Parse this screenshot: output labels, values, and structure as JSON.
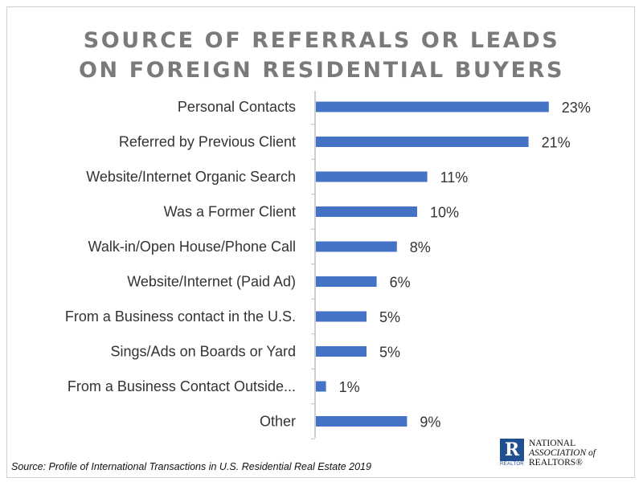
{
  "title_lines": [
    "SOURCE OF REFERRALS OR LEADS",
    "ON FOREIGN RESIDENTIAL BUYERS"
  ],
  "source": "Source: Profile of International Transactions in U.S. Residential Real Estate 2019",
  "logo": {
    "mark_letter": "R",
    "mark_caption": "REALTOR",
    "lines": [
      "NATIONAL",
      "ASSOCIATION of",
      "REALTORS®"
    ]
  },
  "colors": {
    "bar": "#4472c4",
    "axis": "#bfbfbf",
    "title": "#7a7a7a",
    "text": "#333333"
  },
  "chart_data": {
    "type": "bar",
    "orientation": "horizontal",
    "categories": [
      "Personal Contacts",
      "Referred by Previous Client",
      "Website/Internet Organic Search",
      "Was a Former Client",
      "Walk-in/Open House/Phone Call",
      "Website/Internet (Paid Ad)",
      "From a Business contact in the U.S.",
      "Sings/Ads on Boards or Yard",
      "From a Business Contact Outside...",
      "Other"
    ],
    "values": [
      23,
      21,
      11,
      10,
      8,
      6,
      5,
      5,
      1,
      9
    ],
    "value_labels": [
      "23%",
      "21%",
      "11%",
      "10%",
      "8%",
      "6%",
      "5%",
      "5%",
      "1%",
      "9%"
    ],
    "title": "SOURCE OF REFERRALS OR LEADS ON FOREIGN RESIDENTIAL BUYERS",
    "xlabel": "",
    "ylabel": "",
    "xlim": [
      0,
      25
    ],
    "grid": false,
    "legend": "none"
  }
}
